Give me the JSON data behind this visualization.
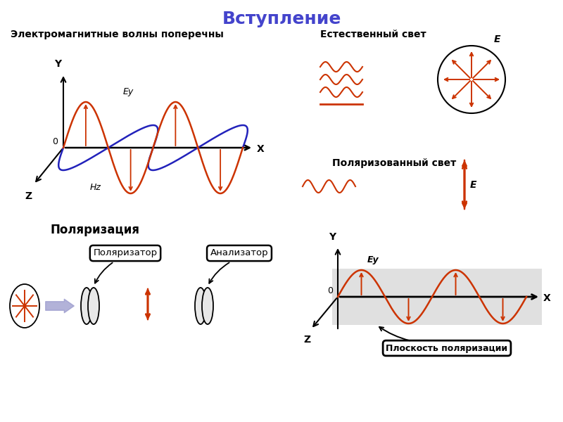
{
  "title": "Вступление",
  "title_color": "#4444cc",
  "title_fontsize": 18,
  "bg_color": "#ffffff",
  "em_wave_label": "Электромагнитные волны поперечны",
  "natural_light_label": "Естественный свет",
  "polarized_light_label": "Поляризованный свет",
  "polarization_label": "Поляризация",
  "polarizer_label": "Поляризатор",
  "analyzer_label": "Анализатор",
  "polarization_plane_label": "Плоскость поляризации",
  "E_label": "E",
  "Ey_label": "Ey",
  "Hz_label": "Hz",
  "wave_color": "#cc3300",
  "blue_wave_color": "#2222bb",
  "orange_color": "#cc4400",
  "arrow_blue": "#8899cc"
}
